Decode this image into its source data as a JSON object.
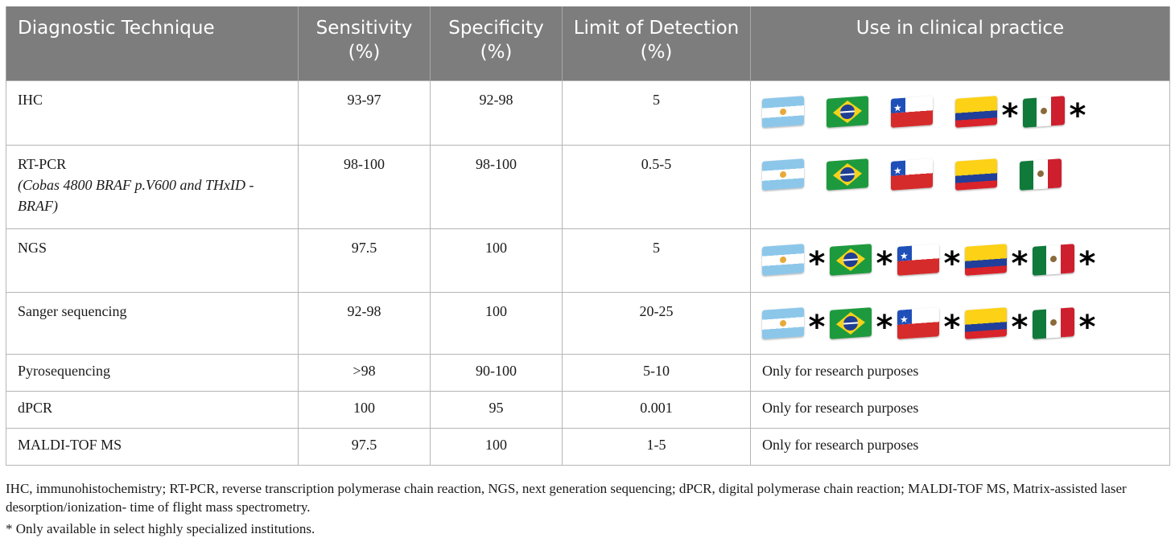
{
  "table": {
    "headers": [
      {
        "line1": "Diagnostic Technique",
        "line2": ""
      },
      {
        "line1": "Sensitivity",
        "line2": "(%)"
      },
      {
        "line1": "Specificity",
        "line2": "(%)"
      },
      {
        "line1": "Limit of Detection",
        "line2": "(%)"
      },
      {
        "line1": "Use in clinical practice",
        "line2": ""
      }
    ],
    "rows": [
      {
        "technique": "IHC",
        "subtitle": "",
        "sensitivity": "93-97",
        "specificity": "92-98",
        "lod": "5",
        "use": {
          "type": "flags",
          "flags": [
            {
              "country": "Argentina",
              "icon": "argentina-flag-icon",
              "asterisk": false
            },
            {
              "country": "Brazil",
              "icon": "brazil-flag-icon",
              "asterisk": false
            },
            {
              "country": "Chile",
              "icon": "chile-flag-icon",
              "asterisk": false
            },
            {
              "country": "Colombia",
              "icon": "colombia-flag-icon",
              "asterisk": true
            },
            {
              "country": "Mexico",
              "icon": "mexico-flag-icon",
              "asterisk": true
            }
          ]
        }
      },
      {
        "technique": "RT-PCR",
        "subtitle": "(Cobas 4800 BRAF p.V600 and THxID -BRAF)",
        "sensitivity": "98-100",
        "specificity": "98-100",
        "lod": "0.5-5",
        "use": {
          "type": "flags",
          "flags": [
            {
              "country": "Argentina",
              "icon": "argentina-flag-icon",
              "asterisk": false
            },
            {
              "country": "Brazil",
              "icon": "brazil-flag-icon",
              "asterisk": false
            },
            {
              "country": "Chile",
              "icon": "chile-flag-icon",
              "asterisk": false
            },
            {
              "country": "Colombia",
              "icon": "colombia-flag-icon",
              "asterisk": false
            },
            {
              "country": "Mexico",
              "icon": "mexico-flag-icon",
              "asterisk": false
            }
          ]
        }
      },
      {
        "technique": "NGS",
        "subtitle": "",
        "sensitivity": "97.5",
        "specificity": "100",
        "lod": "5",
        "use": {
          "type": "flags",
          "flags": [
            {
              "country": "Argentina",
              "icon": "argentina-flag-icon",
              "asterisk": true
            },
            {
              "country": "Brazil",
              "icon": "brazil-flag-icon",
              "asterisk": true
            },
            {
              "country": "Chile",
              "icon": "chile-flag-icon",
              "asterisk": true
            },
            {
              "country": "Colombia",
              "icon": "colombia-flag-icon",
              "asterisk": true
            },
            {
              "country": "Mexico",
              "icon": "mexico-flag-icon",
              "asterisk": true
            }
          ]
        }
      },
      {
        "technique": "Sanger sequencing",
        "subtitle": "",
        "sensitivity": "92-98",
        "specificity": "100",
        "lod": "20-25",
        "use": {
          "type": "flags",
          "flags": [
            {
              "country": "Argentina",
              "icon": "argentina-flag-icon",
              "asterisk": true
            },
            {
              "country": "Brazil",
              "icon": "brazil-flag-icon",
              "asterisk": true
            },
            {
              "country": "Chile",
              "icon": "chile-flag-icon",
              "asterisk": true
            },
            {
              "country": "Colombia",
              "icon": "colombia-flag-icon",
              "asterisk": true
            },
            {
              "country": "Mexico",
              "icon": "mexico-flag-icon",
              "asterisk": true
            }
          ]
        }
      },
      {
        "technique": "Pyrosequencing",
        "subtitle": "",
        "sensitivity": ">98",
        "specificity": "90-100",
        "lod": "5-10",
        "use": {
          "type": "text",
          "text": "Only for research purposes"
        }
      },
      {
        "technique": "dPCR",
        "subtitle": "",
        "sensitivity": "100",
        "specificity": "95",
        "lod": "0.001",
        "use": {
          "type": "text",
          "text": "Only for research purposes"
        }
      },
      {
        "technique": "MALDI-TOF MS",
        "subtitle": "",
        "sensitivity": "97.5",
        "specificity": "100",
        "lod": "1-5",
        "use": {
          "type": "text",
          "text": "Only for research purposes"
        }
      }
    ],
    "asterisk_symbol": "*"
  },
  "notes": {
    "abbreviations": "IHC, immunohistochemistry; RT-PCR, reverse transcription polymerase chain reaction, NGS, next generation sequencing; dPCR, digital polymerase chain reaction; MALDI-TOF MS, Matrix-assisted laser desorption/ionization- time of flight mass spectrometry.",
    "asterisk_note": "* Only available in select highly specialized institutions."
  },
  "colors": {
    "header_bg": "#7d7d7d",
    "header_text": "#ffffff",
    "border": "#b5b5b5"
  }
}
